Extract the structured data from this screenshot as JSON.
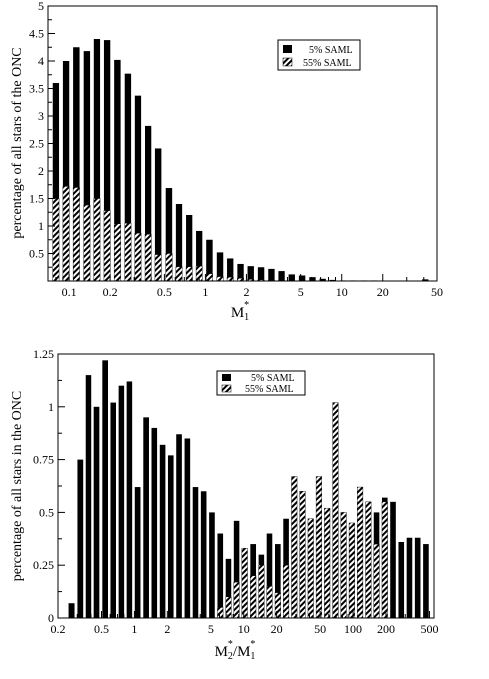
{
  "chart_data": [
    {
      "type": "bar",
      "ylabel": "percentage of all stars of the ONC",
      "xlabel": "M1*",
      "xlabel_main": "M",
      "xlabel_sub": "1",
      "xlabel_sup": "*",
      "x_scale": "log",
      "xlim": [
        0.07,
        50
      ],
      "ylim": [
        0,
        5
      ],
      "x_ticks": [
        {
          "v": 0.1,
          "label": "0.1"
        },
        {
          "v": 0.2,
          "label": "0.2"
        },
        {
          "v": 0.5,
          "label": "0.5"
        },
        {
          "v": 1,
          "label": "1"
        },
        {
          "v": 2,
          "label": "2"
        },
        {
          "v": 5,
          "label": "5"
        },
        {
          "v": 10,
          "label": "10"
        },
        {
          "v": 20,
          "label": "20"
        },
        {
          "v": 50,
          "label": "50"
        }
      ],
      "y_ticks": [
        {
          "v": 0.5,
          "label": "0.5"
        },
        {
          "v": 1,
          "label": "1"
        },
        {
          "v": 1.5,
          "label": "1.5"
        },
        {
          "v": 2,
          "label": "2"
        },
        {
          "v": 2.5,
          "label": "2.5"
        },
        {
          "v": 3,
          "label": "3"
        },
        {
          "v": 3.5,
          "label": "3.5"
        },
        {
          "v": 4,
          "label": "4"
        },
        {
          "v": 4.5,
          "label": "4.5"
        },
        {
          "v": 5,
          "label": "5"
        }
      ],
      "legend_position": "top-right",
      "x": [
        0.08,
        0.095,
        0.113,
        0.135,
        0.16,
        0.19,
        0.226,
        0.27,
        0.32,
        0.38,
        0.45,
        0.54,
        0.64,
        0.76,
        0.9,
        1.07,
        1.28,
        1.52,
        1.81,
        2.15,
        2.56,
        3.05,
        3.62,
        4.3,
        5.12,
        6.1,
        7.25,
        8.6,
        10.2,
        12.2,
        14.5,
        17.2,
        20.5,
        24.4,
        29.0,
        34.5,
        41.0
      ],
      "series": [
        {
          "name": "5% SAML",
          "pattern": "solid",
          "values": [
            3.6,
            4.0,
            4.25,
            4.18,
            4.4,
            4.38,
            4.02,
            3.77,
            3.37,
            2.82,
            2.41,
            1.69,
            1.4,
            1.2,
            0.91,
            0.75,
            0.52,
            0.41,
            0.31,
            0.27,
            0.25,
            0.22,
            0.18,
            0.12,
            0.1,
            0.07,
            0.04,
            0.02,
            0.01,
            0.01,
            0.01,
            0.01,
            0.0,
            0.0,
            0.0,
            0.0,
            0.03
          ]
        },
        {
          "name": "55% SAML",
          "pattern": "hatched",
          "values": [
            1.5,
            1.72,
            1.7,
            1.38,
            1.5,
            1.28,
            1.04,
            1.05,
            0.87,
            0.85,
            0.48,
            0.5,
            0.26,
            0.26,
            0.27,
            0.13,
            0.08,
            0.07,
            0.05,
            0.03,
            0.02,
            0.01,
            0.01,
            0.0,
            0.0,
            0.0,
            0.0,
            0.0,
            0.0,
            0.0,
            0.0,
            0.0,
            0.0,
            0.0,
            0.0,
            0.0,
            0.0
          ]
        }
      ]
    },
    {
      "type": "bar",
      "ylabel": "percentage of all stars in the ONC",
      "xlabel": "M2*/M1*",
      "xlabel_main1": "M",
      "xlabel_sub1": "2",
      "xlabel_sup1": "*",
      "xlabel_sep": "/M",
      "xlabel_sub2": "1",
      "xlabel_sup2": "*",
      "x_scale": "log",
      "xlim": [
        0.2,
        550
      ],
      "ylim": [
        0,
        1.25
      ],
      "x_ticks": [
        {
          "v": 0.2,
          "label": "0.2"
        },
        {
          "v": 0.5,
          "label": "0.5"
        },
        {
          "v": 1,
          "label": "1"
        },
        {
          "v": 2,
          "label": "2"
        },
        {
          "v": 5,
          "label": "5"
        },
        {
          "v": 10,
          "label": "10"
        },
        {
          "v": 20,
          "label": "20"
        },
        {
          "v": 50,
          "label": "50"
        },
        {
          "v": 100,
          "label": "100"
        },
        {
          "v": 200,
          "label": "200"
        },
        {
          "v": 500,
          "label": "500"
        }
      ],
      "y_ticks": [
        {
          "v": 0,
          "label": "0"
        },
        {
          "v": 0.25,
          "label": "0.25"
        },
        {
          "v": 0.5,
          "label": "0.5"
        },
        {
          "v": 0.75,
          "label": "0.75"
        },
        {
          "v": 1,
          "label": "1"
        },
        {
          "v": 1.25,
          "label": "1.25"
        }
      ],
      "legend_position": "top-center",
      "x": [
        0.266,
        0.32,
        0.38,
        0.45,
        0.54,
        0.64,
        0.76,
        0.9,
        1.07,
        1.28,
        1.52,
        1.81,
        2.15,
        2.56,
        3.05,
        3.62,
        4.3,
        5.12,
        6.1,
        7.25,
        8.6,
        10.2,
        12.2,
        14.5,
        17.2,
        20.5,
        24.4,
        29.0,
        34.5,
        41.0,
        48.7,
        58.0,
        69.0,
        82.0,
        97.5,
        116,
        138,
        164,
        195,
        232,
        276,
        328,
        390,
        464
      ],
      "series": [
        {
          "name": "5% SAML",
          "pattern": "solid",
          "values": [
            0.07,
            0.75,
            1.15,
            1.0,
            1.22,
            1.02,
            1.1,
            1.12,
            0.62,
            0.95,
            0.9,
            0.82,
            0.77,
            0.87,
            0.85,
            0.62,
            0.6,
            0.5,
            0.4,
            0.28,
            0.46,
            0.32,
            0.35,
            0.3,
            0.4,
            0.35,
            0.47,
            0.35,
            0.37,
            0.33,
            0.3,
            0.26,
            0.32,
            0.27,
            0.4,
            0.3,
            0.27,
            0.5,
            0.57,
            0.55,
            0.36,
            0.38,
            0.38,
            0.35
          ]
        },
        {
          "name": "55% SAML",
          "pattern": "hatched",
          "values": [
            0.0,
            0.0,
            0.0,
            0.0,
            0.0,
            0.0,
            0.0,
            0.0,
            0.0,
            0.0,
            0.0,
            0.0,
            0.0,
            0.0,
            0.0,
            0.0,
            0.0,
            0.0,
            0.05,
            0.1,
            0.17,
            0.33,
            0.2,
            0.25,
            0.15,
            0.12,
            0.25,
            0.67,
            0.6,
            0.47,
            0.67,
            0.52,
            1.02,
            0.5,
            0.45,
            0.62,
            0.55,
            0.35,
            0.55,
            0.0,
            0.0,
            0.0,
            0.0,
            0.0
          ]
        }
      ]
    }
  ]
}
